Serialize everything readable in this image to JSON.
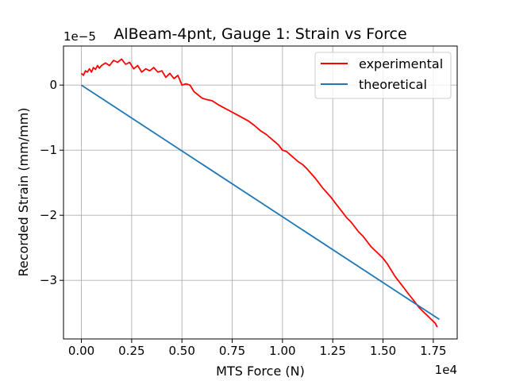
{
  "chart_data": {
    "type": "line",
    "title": "AlBeam-4pnt, Gauge 1: Strain vs Force",
    "xlabel": "MTS Force (N)",
    "ylabel": "Recorded Strain (mm/mm)",
    "x_offset_text": "1e4",
    "y_offset_text": "1e−5",
    "xlim": [
      -0.089,
      1.869
    ],
    "ylim": [
      -3.9,
      0.6
    ],
    "x_ticks": [
      0.0,
      0.25,
      0.5,
      0.75,
      1.0,
      1.25,
      1.5,
      1.75
    ],
    "x_tick_labels": [
      "0.00",
      "0.25",
      "0.50",
      "0.75",
      "1.00",
      "1.25",
      "1.50",
      "1.75"
    ],
    "y_ticks": [
      0,
      -1,
      -2,
      -3
    ],
    "y_tick_labels": [
      "0",
      "−1",
      "−2",
      "−3"
    ],
    "grid": true,
    "legend_position": "top-right",
    "series": [
      {
        "name": "experimental",
        "color": "#ff0000",
        "x": [
          0.0,
          0.01,
          0.02,
          0.03,
          0.04,
          0.05,
          0.06,
          0.07,
          0.08,
          0.09,
          0.1,
          0.12,
          0.14,
          0.16,
          0.18,
          0.2,
          0.22,
          0.24,
          0.26,
          0.28,
          0.3,
          0.32,
          0.34,
          0.36,
          0.38,
          0.4,
          0.42,
          0.44,
          0.46,
          0.48,
          0.5,
          0.52,
          0.54,
          0.56,
          0.58,
          0.6,
          0.62,
          0.65,
          0.68,
          0.71,
          0.74,
          0.77,
          0.8,
          0.83,
          0.86,
          0.89,
          0.92,
          0.95,
          0.98,
          1.0,
          1.02,
          1.05,
          1.08,
          1.1,
          1.12,
          1.14,
          1.16,
          1.18,
          1.2,
          1.22,
          1.24,
          1.26,
          1.28,
          1.3,
          1.32,
          1.34,
          1.36,
          1.38,
          1.4,
          1.42,
          1.44,
          1.46,
          1.48,
          1.5,
          1.52,
          1.54,
          1.56,
          1.58,
          1.6,
          1.62,
          1.64,
          1.66,
          1.68,
          1.7,
          1.72,
          1.74,
          1.76,
          1.77
        ],
        "y": [
          0.18,
          0.15,
          0.22,
          0.2,
          0.25,
          0.2,
          0.27,
          0.24,
          0.3,
          0.26,
          0.3,
          0.34,
          0.3,
          0.38,
          0.35,
          0.4,
          0.32,
          0.35,
          0.25,
          0.3,
          0.2,
          0.25,
          0.22,
          0.27,
          0.2,
          0.22,
          0.12,
          0.18,
          0.1,
          0.15,
          0.0,
          0.02,
          0.0,
          -0.1,
          -0.15,
          -0.2,
          -0.22,
          -0.24,
          -0.3,
          -0.35,
          -0.4,
          -0.45,
          -0.5,
          -0.55,
          -0.62,
          -0.7,
          -0.76,
          -0.84,
          -0.92,
          -1.0,
          -1.02,
          -1.1,
          -1.18,
          -1.22,
          -1.28,
          -1.35,
          -1.42,
          -1.5,
          -1.58,
          -1.65,
          -1.72,
          -1.8,
          -1.88,
          -1.96,
          -2.04,
          -2.1,
          -2.18,
          -2.26,
          -2.32,
          -2.4,
          -2.48,
          -2.54,
          -2.6,
          -2.66,
          -2.74,
          -2.84,
          -2.94,
          -3.02,
          -3.1,
          -3.18,
          -3.26,
          -3.34,
          -3.42,
          -3.48,
          -3.54,
          -3.6,
          -3.66,
          -3.72
        ]
      },
      {
        "name": "theoretical",
        "color": "#1f77b4",
        "x": [
          0.0,
          1.78
        ],
        "y": [
          0.0,
          -3.6
        ]
      }
    ]
  }
}
